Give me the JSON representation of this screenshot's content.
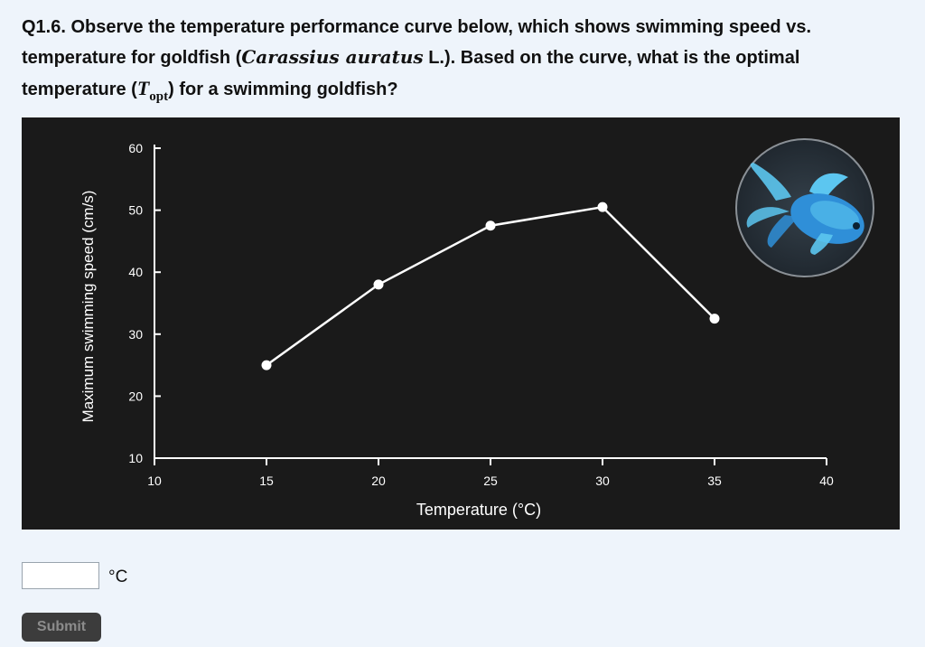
{
  "question": {
    "lead": "Q1.6. Observe the temperature performance curve below, which shows swimming speed vs. temperature for goldfish (",
    "species": "Carassius auratus",
    "after_species": " L.). Based on the curve, what is the optimal temperature (",
    "t_symbol": "T",
    "t_subscript": "opt",
    "tail": ") for a swimming goldfish?"
  },
  "chart_data": {
    "type": "line",
    "x": [
      15,
      20,
      25,
      30,
      35
    ],
    "series": [
      {
        "values": [
          25,
          38,
          47.5,
          50.5,
          32.5
        ]
      }
    ],
    "xlabel": "Temperature (°C)",
    "ylabel": "Maximum swimming speed (cm/s)",
    "xlim": [
      10,
      40
    ],
    "ylim": [
      10,
      60
    ],
    "xticks": [
      10,
      15,
      20,
      25,
      30,
      35,
      40
    ],
    "yticks": [
      10,
      20,
      30,
      40,
      50,
      60
    ],
    "grid": false,
    "background": "#1a1a1a",
    "line_color": "#ffffff",
    "fish_colors": [
      "#2f8fd8",
      "#5cc6f0"
    ]
  },
  "answer": {
    "value": "",
    "placeholder": "",
    "unit": "°C"
  },
  "submit": {
    "label": "Submit"
  }
}
